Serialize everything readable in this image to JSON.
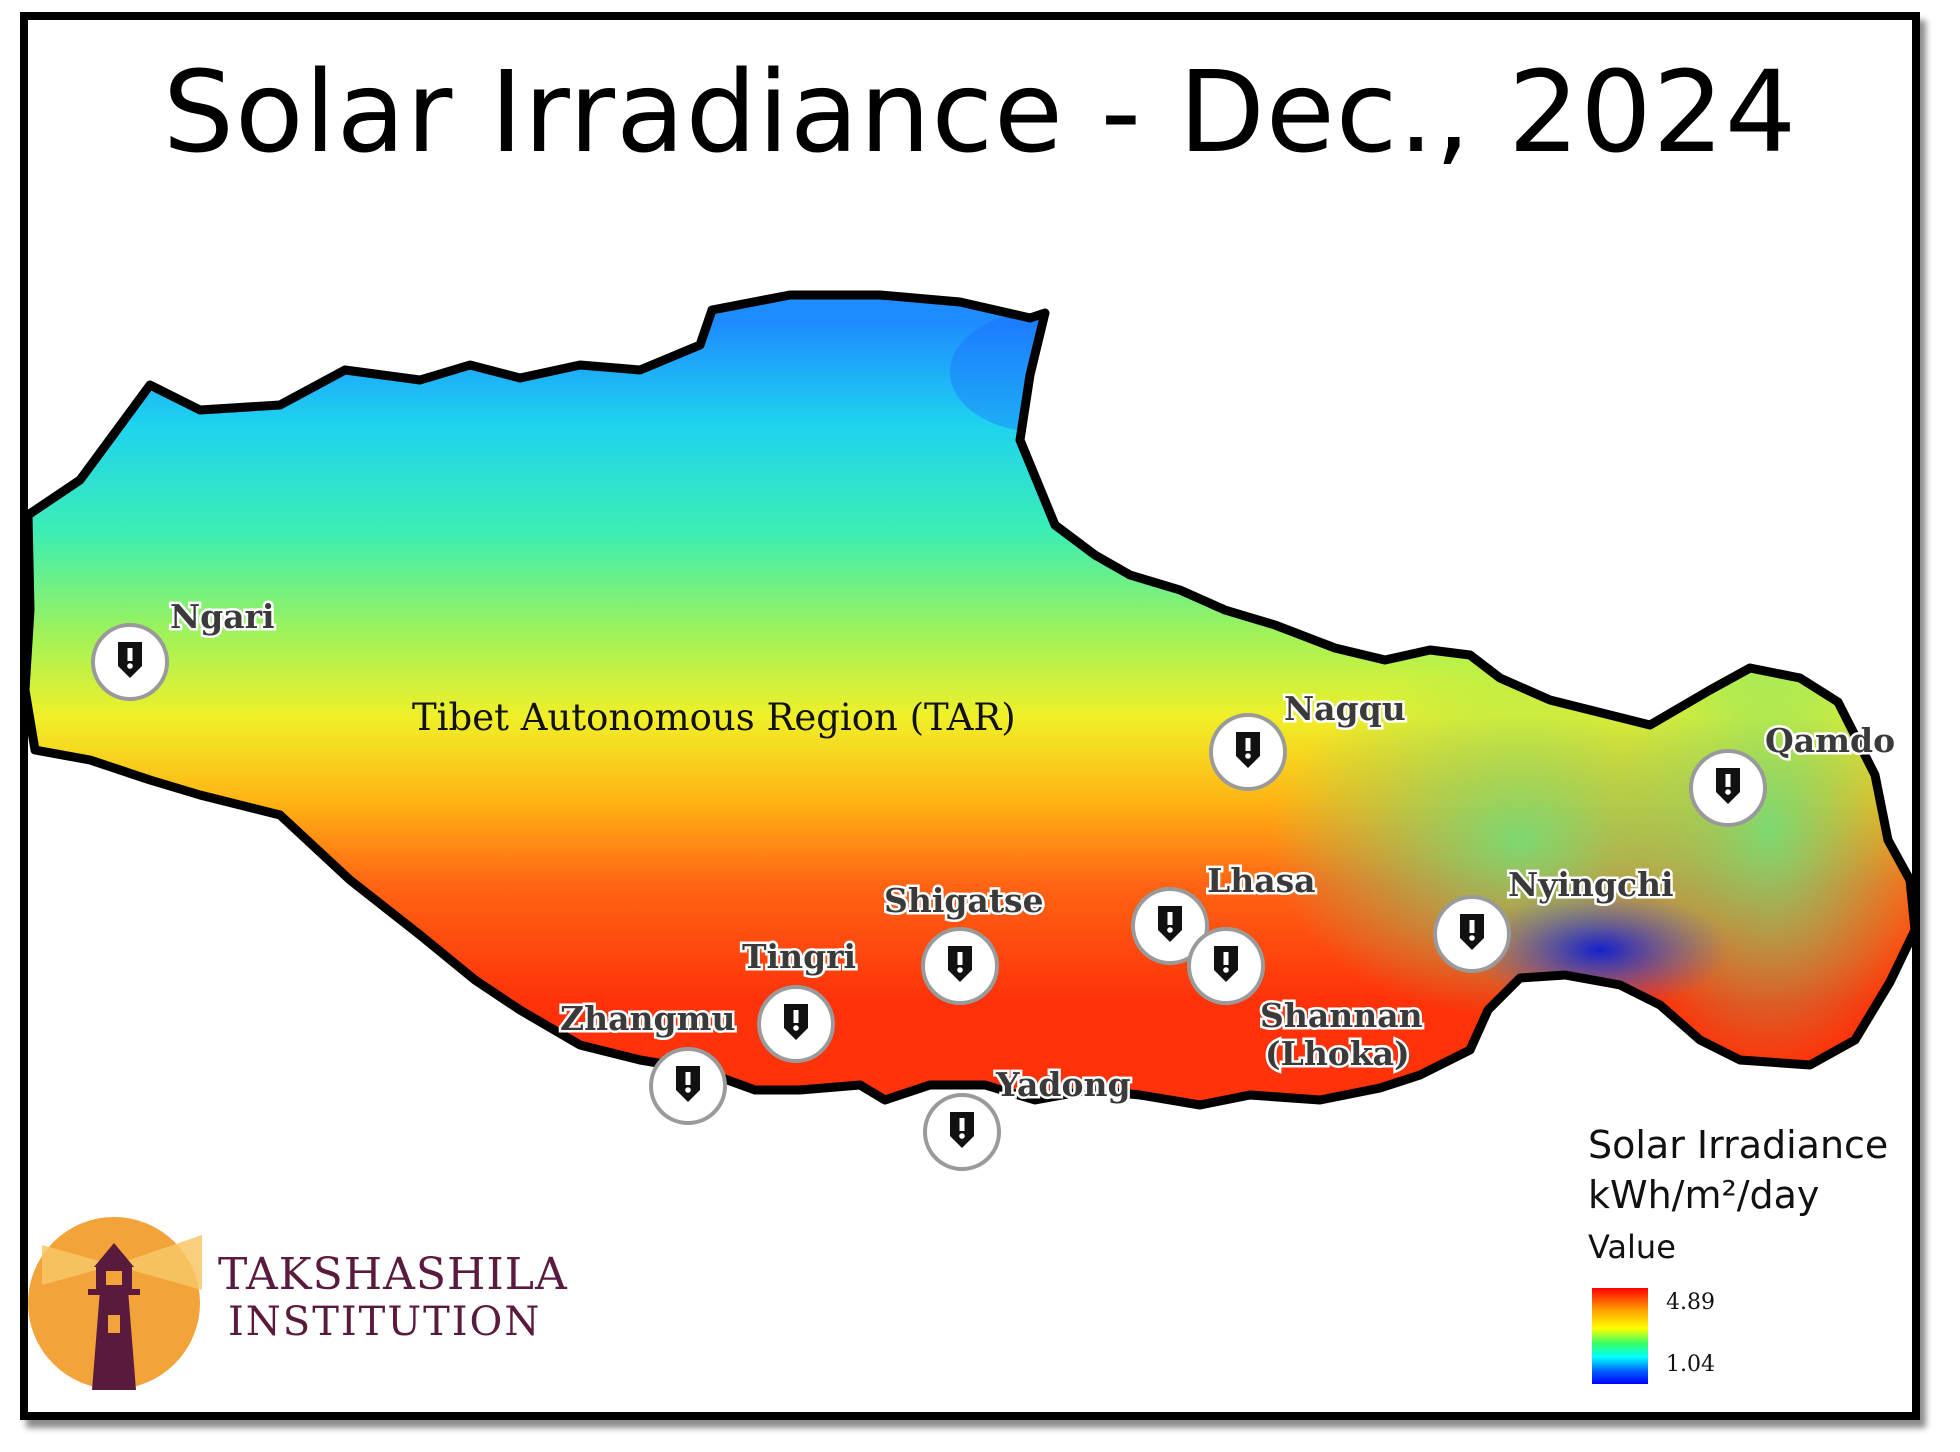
{
  "title": "Solar Irradiance - Dec., 2024",
  "region_label": "Tibet Autonomous Region (TAR)",
  "cities": [
    {
      "id": "ngari",
      "label": "Ngari"
    },
    {
      "id": "nagqu",
      "label": "Nagqu"
    },
    {
      "id": "qamdo",
      "label": "Qamdo"
    },
    {
      "id": "lhasa",
      "label": "Lhasa"
    },
    {
      "id": "nyingchi",
      "label": "Nyingchi"
    },
    {
      "id": "shigatse",
      "label": "Shigatse"
    },
    {
      "id": "tingri",
      "label": "Tingri"
    },
    {
      "id": "zhangmu",
      "label": "Zhangmu"
    },
    {
      "id": "shannan",
      "label": "Shannan",
      "label2": "(Lhoka)"
    },
    {
      "id": "yadong",
      "label": "Yadong"
    }
  ],
  "legend": {
    "title_line1": "Solar Irradiance",
    "title_line2": "kWh/m²/day",
    "value_label": "Value",
    "max": "4.89",
    "min": "1.04",
    "colors": [
      "#ff0000",
      "#ff9900",
      "#ffff00",
      "#33ff66",
      "#00ffff",
      "#0066ff",
      "#0000ff"
    ]
  },
  "logo": {
    "line1": "TAKSHASHILA",
    "line2": "INSTITUTION",
    "colors": {
      "sun": "#f2a33a",
      "tower": "#5a1a3d"
    }
  }
}
